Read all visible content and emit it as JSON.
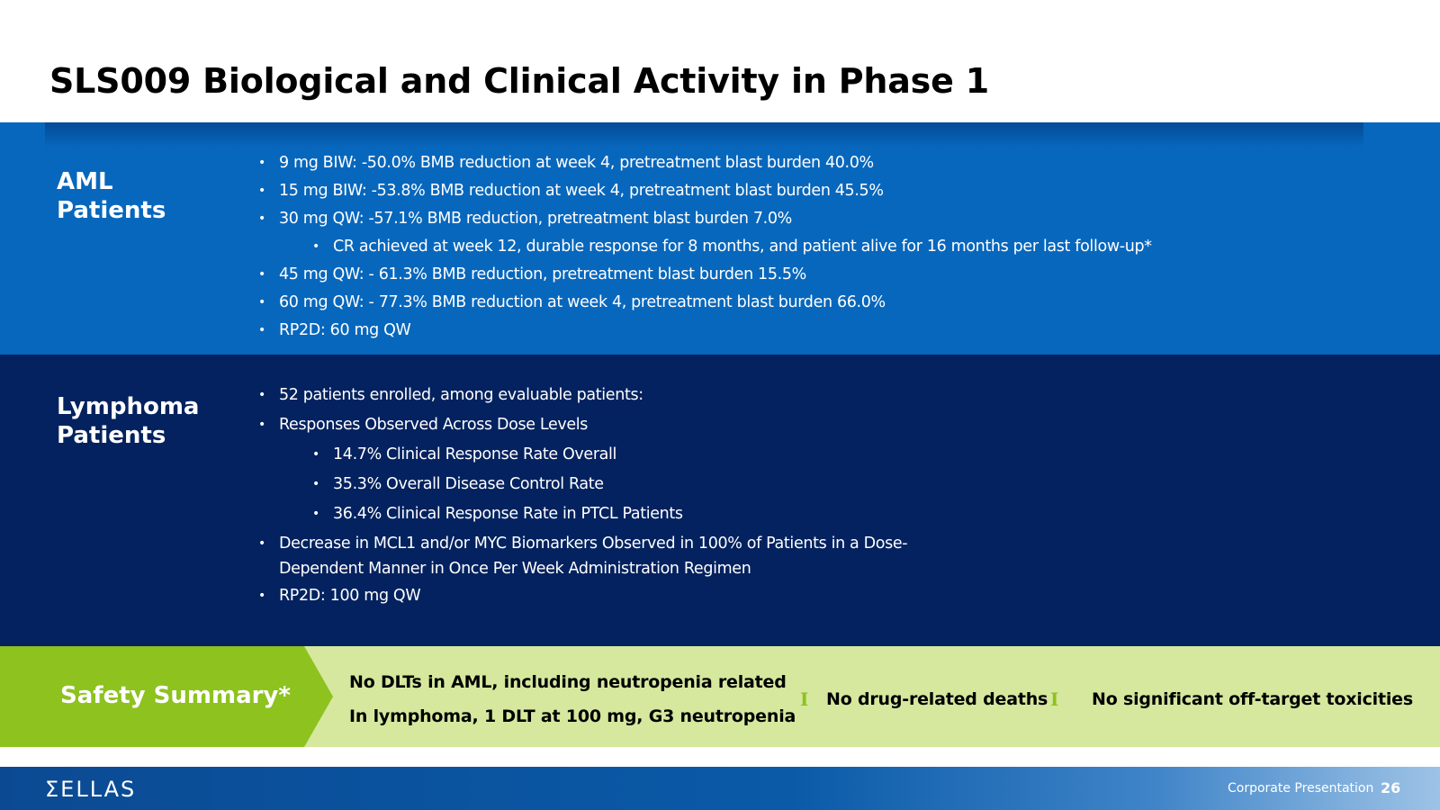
{
  "slide": {
    "title": "SLS009 Biological and Clinical Activity in Phase 1"
  },
  "aml": {
    "label_line1": "AML",
    "label_line2": "Patients",
    "bullets": [
      "9 mg BIW: -50.0% BMB reduction at week 4, pretreatment blast burden 40.0%",
      "15 mg BIW: -53.8% BMB reduction at week 4, pretreatment blast burden 45.5%",
      "30 mg QW: -57.1% BMB reduction, pretreatment blast burden 7.0%",
      "CR achieved at week 12, durable response for 8 months, and patient alive for 16 months per last follow-up*",
      "45 mg QW: - 61.3% BMB reduction, pretreatment blast burden 15.5%",
      "60 mg QW: - 77.3% BMB reduction at week 4, pretreatment blast burden 66.0%",
      "RP2D: 60 mg QW"
    ]
  },
  "lymphoma": {
    "label_line1": "Lymphoma",
    "label_line2": "Patients",
    "bullets": [
      "52 patients enrolled, among evaluable patients:",
      "Responses Observed Across Dose Levels",
      "14.7% Clinical Response Rate Overall",
      "35.3% Overall Disease Control Rate",
      "36.4% Clinical Response Rate in PTCL Patients",
      "Decrease in MCL1 and/or MYC Biomarkers Observed in 100% of Patients in a Dose-",
      "Dependent Manner in Once Per Week Administration Regimen",
      "RP2D: 100 mg QW"
    ]
  },
  "safety": {
    "label": "Safety Summary*",
    "line1": "No DLTs in AML, including neutropenia related",
    "line2": "In lymphoma, 1 DLT at 100 mg, G3 neutropenia",
    "separator": "I",
    "item2": "No drug-related deaths",
    "item3": "No significant off-target toxicities",
    "bg_color": "#d5e89e",
    "accent_color": "#8dc21f"
  },
  "footer": {
    "logo": "ΣELLAS",
    "label": "Corporate Presentation",
    "page": "26"
  }
}
